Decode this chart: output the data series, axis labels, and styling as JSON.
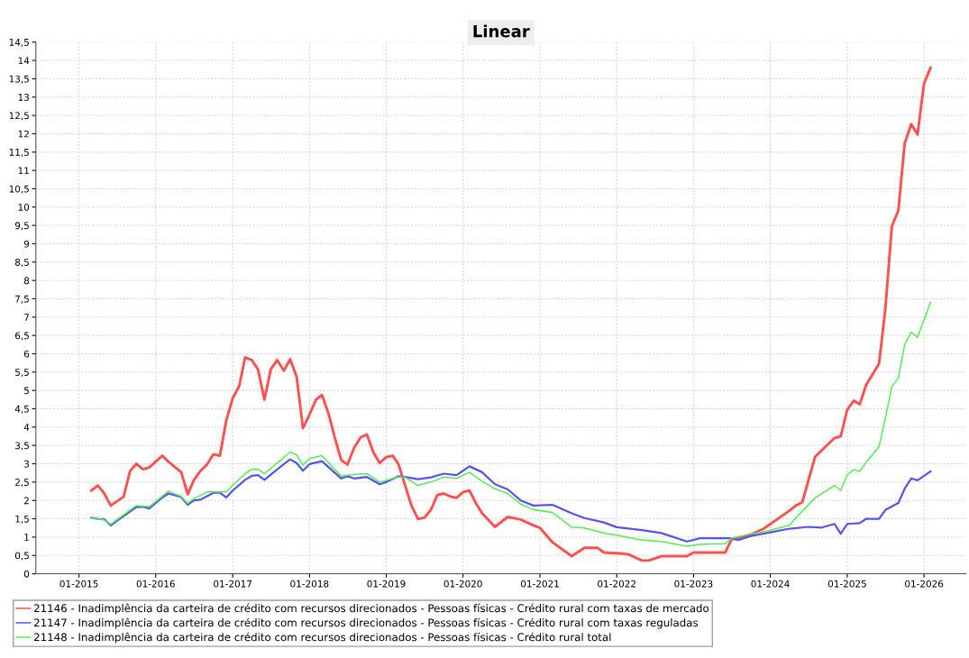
{
  "chart_data": {
    "type": "line",
    "title": "Linear",
    "xlim": [
      "2014-06-10",
      "2026-07-20"
    ],
    "xticks": [
      {
        "value": "2015-01",
        "label": "01-2015"
      },
      {
        "value": "2016-01",
        "label": "01-2016"
      },
      {
        "value": "2017-01",
        "label": "01-2017"
      },
      {
        "value": "2018-01",
        "label": "01-2018"
      },
      {
        "value": "2019-01",
        "label": "01-2019"
      },
      {
        "value": "2020-01",
        "label": "01-2020"
      },
      {
        "value": "2021-01",
        "label": "01-2021"
      },
      {
        "value": "2022-01",
        "label": "01-2022"
      },
      {
        "value": "2023-01",
        "label": "01-2023"
      },
      {
        "value": "2024-01",
        "label": "01-2024"
      },
      {
        "value": "2025-01",
        "label": "01-2025"
      },
      {
        "value": "2026-01",
        "label": "01-2026"
      }
    ],
    "ylim": [
      0,
      14.5
    ],
    "yticks": [
      0,
      {
        "value": 0.5,
        "label": "0,5"
      },
      1,
      {
        "value": 1.5,
        "label": "1,5"
      },
      2,
      {
        "value": 2.5,
        "label": "2,5"
      },
      3,
      {
        "value": 3.5,
        "label": "3,5"
      },
      4,
      {
        "value": 4.5,
        "label": "4,5"
      },
      5,
      {
        "value": 5.5,
        "label": "5,5"
      },
      6,
      {
        "value": 6.5,
        "label": "6,5"
      },
      7,
      {
        "value": 7.5,
        "label": "7,5"
      },
      8,
      {
        "value": 8.5,
        "label": "8,5"
      },
      9,
      {
        "value": 9.5,
        "label": "9,5"
      },
      10,
      {
        "value": 10.5,
        "label": "10,5"
      },
      11,
      {
        "value": 11.5,
        "label": "11,5"
      },
      12,
      {
        "value": 12.5,
        "label": "12,5"
      },
      13,
      {
        "value": 13.5,
        "label": "13,5"
      },
      14,
      {
        "value": 14.5,
        "label": "14,5"
      }
    ],
    "grid": true,
    "legend": "bottom",
    "marker": "none",
    "line_style": "solid",
    "series": [
      {
        "name": "21146 - Inadimplência da carteira de crédito com recursos direcionados - Pessoas físicas - Crédito rural com taxas de mercado",
        "color": "#ff5050",
        "x": [
          "2015-03",
          "2015-04",
          "2015-05",
          "2015-06",
          "2015-08",
          "2015-09",
          "2015-10",
          "2015-11",
          "2015-12",
          "2016-02",
          "2016-03",
          "2016-05",
          "2016-06",
          "2016-07",
          "2016-08",
          "2016-09",
          "2016-10",
          "2016-11",
          "2016-12",
          "2017-01",
          "2017-02",
          "2017-03",
          "2017-04",
          "2017-05",
          "2017-06",
          "2017-07",
          "2017-08",
          "2017-09",
          "2017-10",
          "2017-11",
          "2017-12",
          "2018-01",
          "2018-02",
          "2018-03",
          "2018-04",
          "2018-05",
          "2018-06",
          "2018-07",
          "2018-08",
          "2018-09",
          "2018-10",
          "2018-11",
          "2018-12",
          "2019-01",
          "2019-02",
          "2019-03",
          "2019-04",
          "2019-05",
          "2019-06",
          "2019-07",
          "2019-08",
          "2019-09",
          "2019-10",
          "2019-11",
          "2019-12",
          "2020-01",
          "2020-02",
          "2020-03",
          "2020-04",
          "2020-06",
          "2020-08",
          "2020-10",
          "2020-12",
          "2021-01",
          "2021-03",
          "2021-06",
          "2021-08",
          "2021-10",
          "2021-11",
          "2022-02",
          "2022-03",
          "2022-05",
          "2022-06",
          "2022-08",
          "2022-12",
          "2023-01",
          "2023-06",
          "2023-07",
          "2023-10",
          "2023-12",
          "2024-02",
          "2024-04",
          "2024-05",
          "2024-06",
          "2024-08",
          "2024-11",
          "2024-12",
          "2025-01",
          "2025-02",
          "2025-03",
          "2025-04",
          "2025-06",
          "2025-07",
          "2025-08",
          "2025-09",
          "2025-10",
          "2025-11",
          "2025-12",
          "2026-01",
          "2026-02"
        ],
        "values": [
          2.27,
          2.41,
          2.19,
          1.86,
          2.1,
          2.8,
          3.0,
          2.85,
          2.9,
          3.22,
          3.06,
          2.77,
          2.17,
          2.56,
          2.81,
          2.98,
          3.26,
          3.22,
          4.17,
          4.79,
          5.12,
          5.9,
          5.83,
          5.58,
          4.75,
          5.58,
          5.83,
          5.54,
          5.85,
          5.37,
          3.97,
          4.34,
          4.75,
          4.88,
          4.38,
          3.72,
          3.1,
          2.98,
          3.43,
          3.72,
          3.8,
          3.31,
          3.02,
          3.18,
          3.22,
          2.98,
          2.4,
          1.86,
          1.49,
          1.53,
          1.74,
          2.15,
          2.19,
          2.11,
          2.07,
          2.23,
          2.27,
          1.94,
          1.65,
          1.28,
          1.55,
          1.48,
          1.32,
          1.25,
          0.86,
          0.48,
          0.71,
          0.71,
          0.58,
          0.55,
          0.52,
          0.36,
          0.36,
          0.48,
          0.48,
          0.58,
          0.58,
          0.94,
          1.07,
          1.23,
          1.48,
          1.72,
          1.86,
          1.95,
          3.19,
          3.7,
          3.75,
          4.48,
          4.72,
          4.62,
          5.15,
          5.73,
          7.22,
          9.48,
          9.91,
          11.74,
          12.26,
          11.98,
          13.37,
          13.8
        ]
      },
      {
        "name": "21147 - Inadimplência da carteira de crédito com recursos direcionados - Pessoas físicas - Crédito rural com taxas reguladas",
        "color": "#5555ee",
        "x": [
          "2015-03",
          "2015-04",
          "2015-05",
          "2015-06",
          "2015-08",
          "2015-10",
          "2015-11",
          "2015-12",
          "2016-02",
          "2016-03",
          "2016-05",
          "2016-06",
          "2016-07",
          "2016-08",
          "2016-10",
          "2016-11",
          "2016-12",
          "2017-01",
          "2017-03",
          "2017-04",
          "2017-05",
          "2017-06",
          "2017-08",
          "2017-10",
          "2017-11",
          "2017-12",
          "2018-01",
          "2018-03",
          "2018-06",
          "2018-07",
          "2018-08",
          "2018-10",
          "2018-12",
          "2019-01",
          "2019-03",
          "2019-04",
          "2019-06",
          "2019-08",
          "2019-10",
          "2019-12",
          "2020-01",
          "2020-02",
          "2020-04",
          "2020-06",
          "2020-08",
          "2020-10",
          "2020-12",
          "2021-03",
          "2021-06",
          "2021-08",
          "2021-11",
          "2022-01",
          "2022-05",
          "2022-08",
          "2022-12",
          "2023-02",
          "2023-07",
          "2023-08",
          "2023-10",
          "2024-01",
          "2024-04",
          "2024-07",
          "2024-09",
          "2024-11",
          "2024-12",
          "2025-01",
          "2025-03",
          "2025-04",
          "2025-06",
          "2025-07",
          "2025-09",
          "2025-10",
          "2025-11",
          "2025-12",
          "2026-02"
        ],
        "values": [
          1.53,
          1.5,
          1.49,
          1.32,
          1.57,
          1.82,
          1.83,
          1.78,
          2.08,
          2.19,
          2.09,
          1.88,
          2.0,
          2.02,
          2.21,
          2.21,
          2.08,
          2.27,
          2.56,
          2.67,
          2.69,
          2.56,
          2.85,
          3.12,
          3.02,
          2.81,
          2.99,
          3.07,
          2.6,
          2.66,
          2.6,
          2.64,
          2.44,
          2.5,
          2.66,
          2.64,
          2.58,
          2.63,
          2.73,
          2.69,
          2.81,
          2.93,
          2.77,
          2.44,
          2.3,
          2.0,
          1.86,
          1.88,
          1.65,
          1.52,
          1.4,
          1.27,
          1.19,
          1.11,
          0.88,
          0.97,
          0.97,
          0.92,
          1.03,
          1.13,
          1.23,
          1.28,
          1.26,
          1.36,
          1.09,
          1.36,
          1.38,
          1.5,
          1.5,
          1.74,
          1.93,
          2.32,
          2.6,
          2.55,
          2.79
        ]
      },
      {
        "name": "21148 - Inadimplência da carteira de crédito com recursos direcionados - Pessoas físicas - Crédito rural total",
        "color": "#55ee55",
        "x": [
          "2015-03",
          "2015-05",
          "2015-06",
          "2015-08",
          "2015-10",
          "2015-12",
          "2016-03",
          "2016-05",
          "2016-06",
          "2016-07",
          "2016-09",
          "2016-12",
          "2017-01",
          "2017-03",
          "2017-04",
          "2017-05",
          "2017-06",
          "2017-08",
          "2017-10",
          "2017-11",
          "2017-12",
          "2018-01",
          "2018-03",
          "2018-06",
          "2018-08",
          "2018-10",
          "2018-12",
          "2019-03",
          "2019-04",
          "2019-06",
          "2019-08",
          "2019-10",
          "2019-12",
          "2020-02",
          "2020-04",
          "2020-06",
          "2020-08",
          "2020-10",
          "2020-12",
          "2021-03",
          "2021-06",
          "2021-08",
          "2021-11",
          "2022-01",
          "2022-05",
          "2022-08",
          "2022-12",
          "2023-02",
          "2023-06",
          "2023-07",
          "2023-10",
          "2024-01",
          "2024-04",
          "2024-05",
          "2024-08",
          "2024-11",
          "2024-12",
          "2025-01",
          "2025-02",
          "2025-03",
          "2025-04",
          "2025-06",
          "2025-07",
          "2025-08",
          "2025-09",
          "2025-10",
          "2025-11",
          "2025-12",
          "2026-02"
        ],
        "values": [
          1.53,
          1.47,
          1.35,
          1.61,
          1.86,
          1.83,
          2.25,
          2.11,
          1.92,
          2.05,
          2.23,
          2.23,
          2.41,
          2.73,
          2.85,
          2.85,
          2.73,
          3.02,
          3.32,
          3.24,
          2.96,
          3.14,
          3.22,
          2.66,
          2.71,
          2.73,
          2.5,
          2.64,
          2.63,
          2.41,
          2.5,
          2.64,
          2.6,
          2.77,
          2.52,
          2.32,
          2.19,
          1.9,
          1.75,
          1.67,
          1.27,
          1.25,
          1.11,
          1.05,
          0.92,
          0.88,
          0.75,
          0.8,
          0.82,
          0.97,
          1.08,
          1.19,
          1.32,
          1.52,
          2.07,
          2.41,
          2.27,
          2.7,
          2.84,
          2.79,
          3.04,
          3.47,
          4.24,
          5.1,
          5.34,
          6.25,
          6.59,
          6.45,
          7.41
        ]
      }
    ]
  }
}
